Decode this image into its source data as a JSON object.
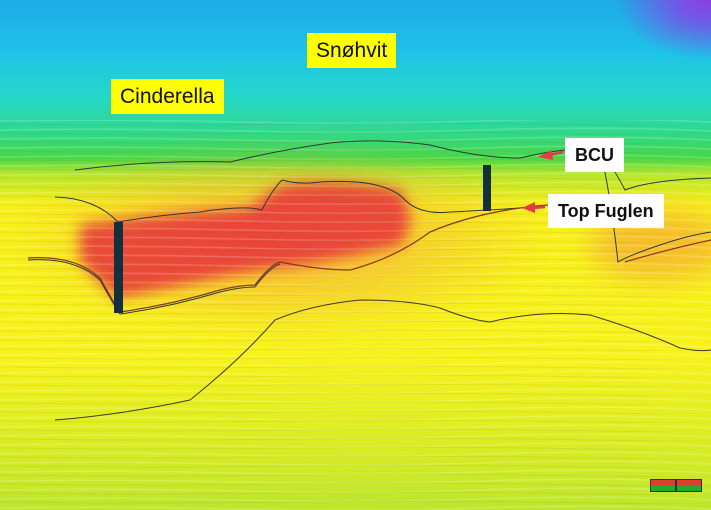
{
  "labels": {
    "snohvit": "Snøhvit",
    "cinderella": "Cinderella",
    "bcu": "BCU",
    "top_fuglen": "Top Fuglen"
  },
  "colors": {
    "label_highlight": "#ffff00",
    "label_box": "#ffffff",
    "arrow": "#e8394a",
    "horizon_line": "#333333",
    "well_marker": "#14303a",
    "hot_zone": "#e8323a"
  },
  "icons": {
    "scale_bar": "scale-bar-icon"
  }
}
